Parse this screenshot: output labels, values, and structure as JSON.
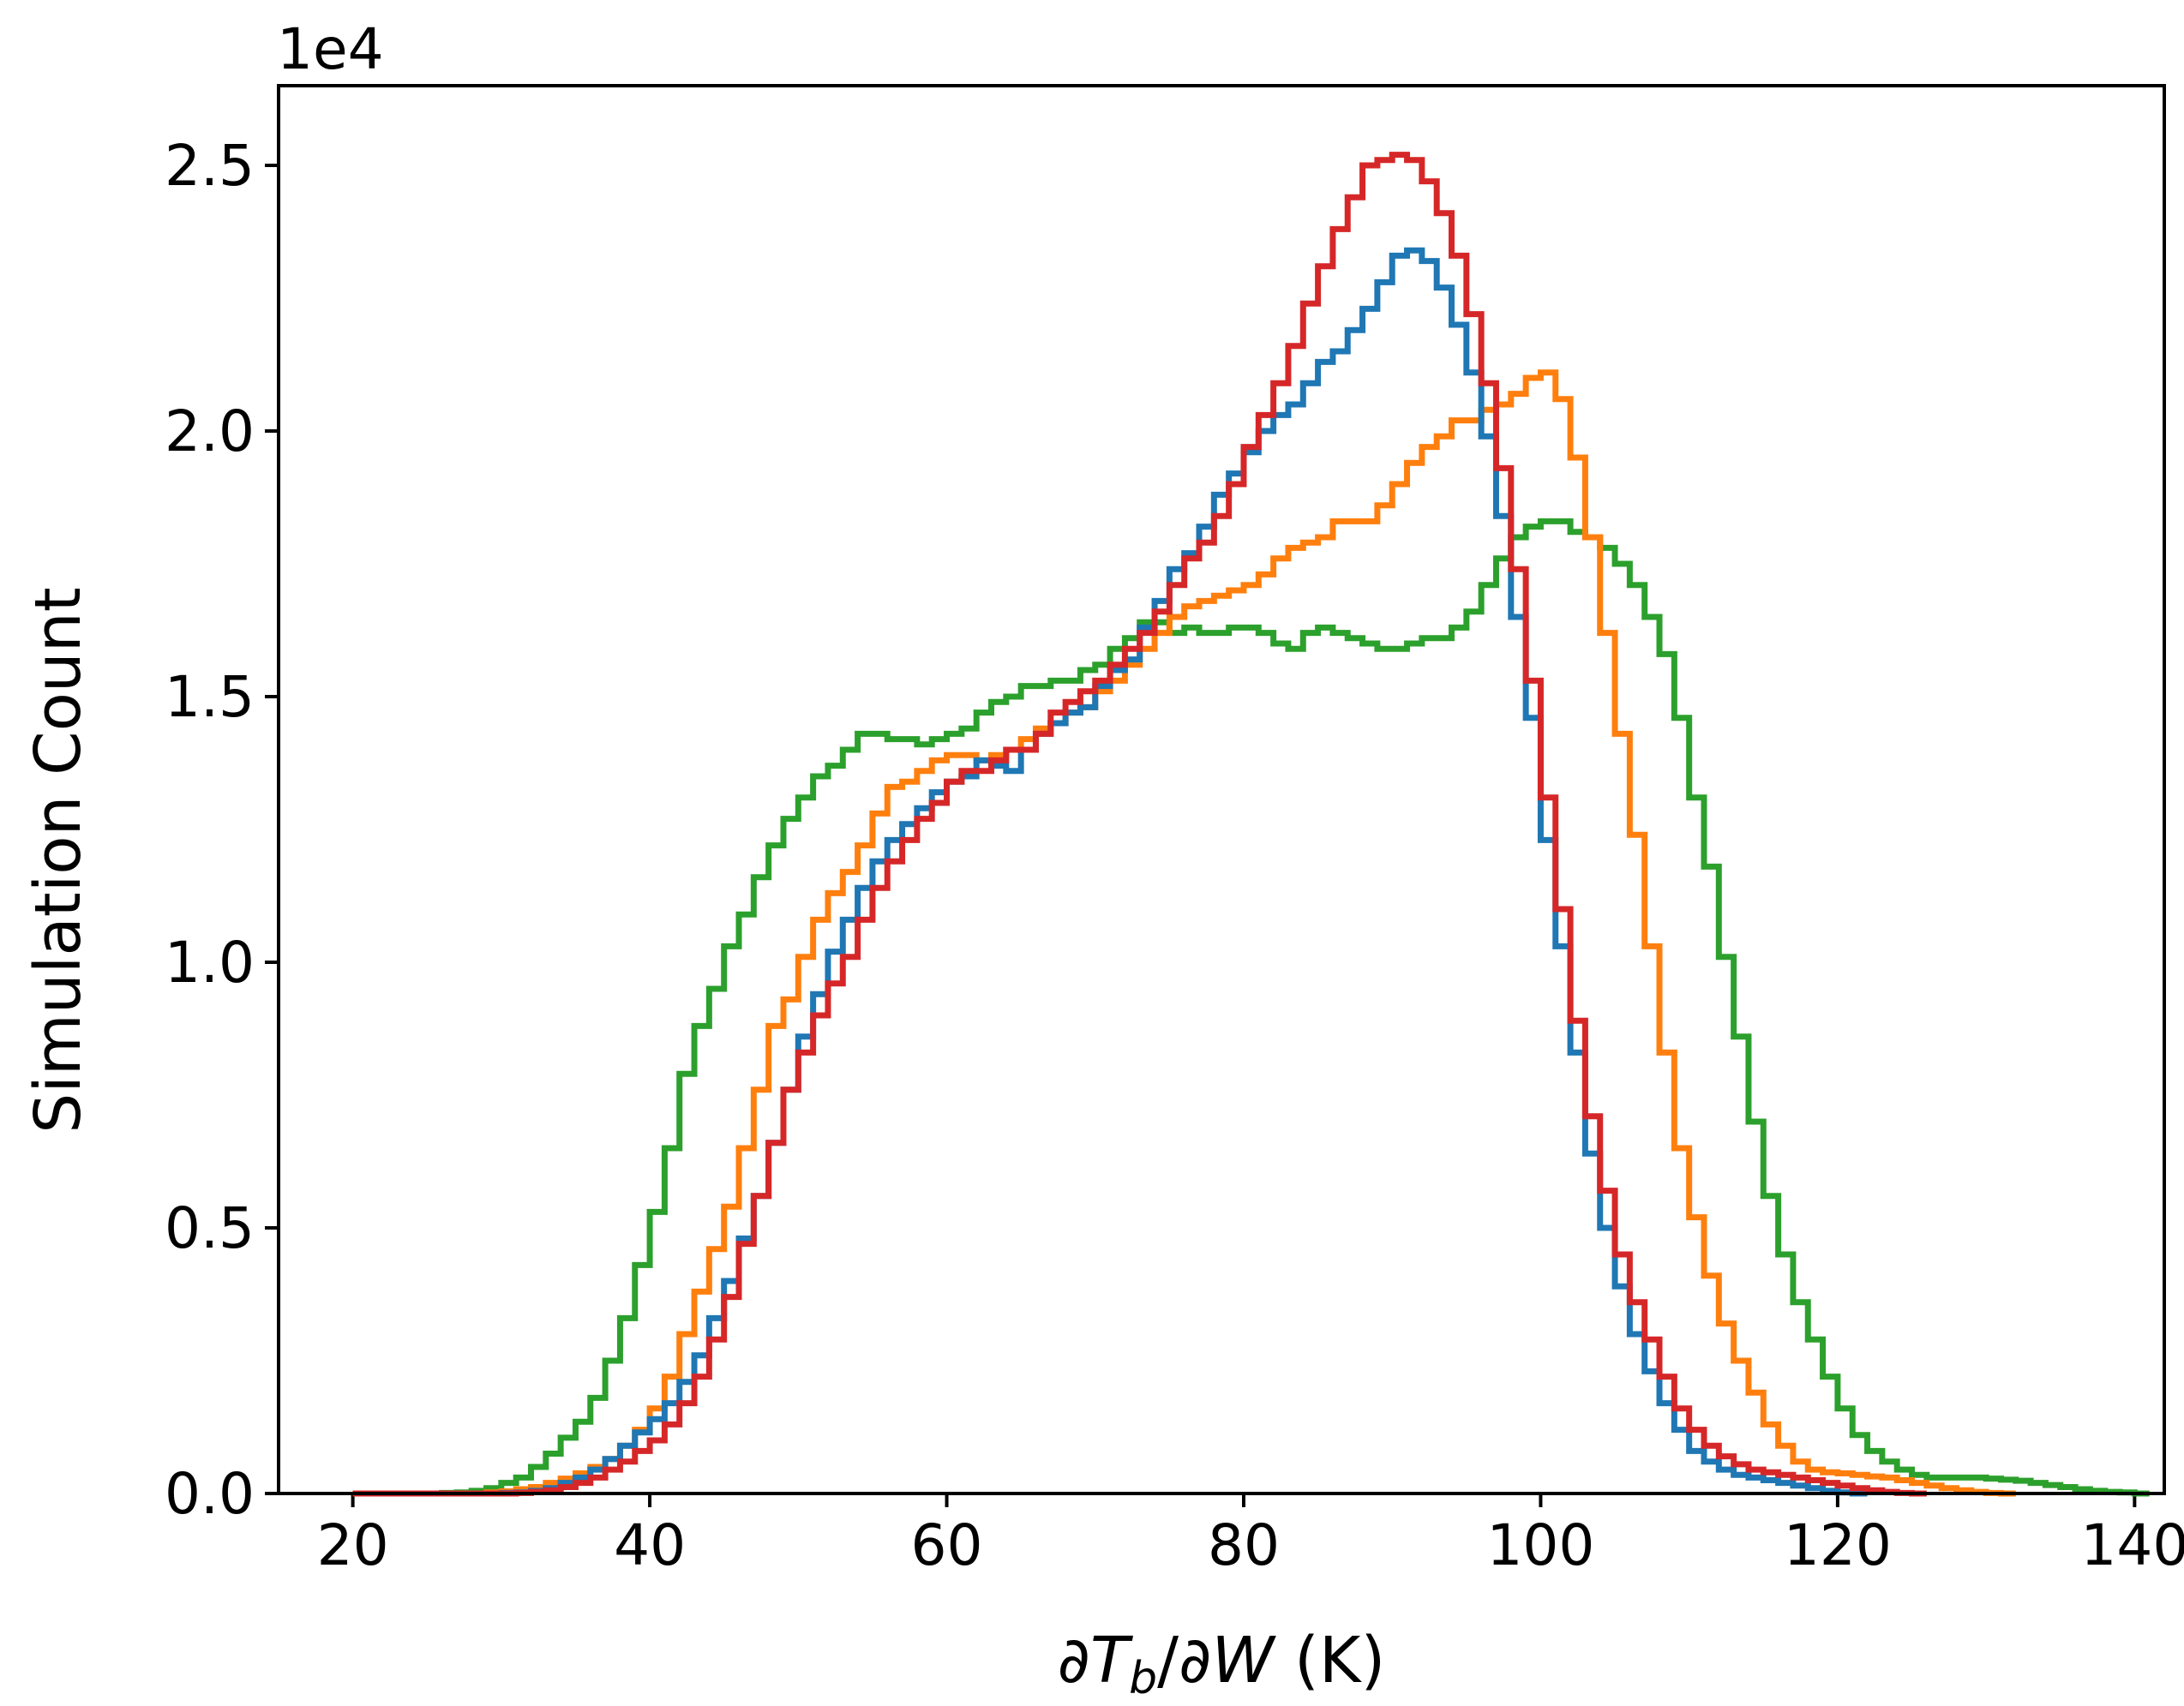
{
  "chart_data": {
    "type": "histogram",
    "title": "",
    "xlabel": "∂Tb/∂W (K)",
    "xlabel_parts": {
      "prefix": "∂",
      "var": "T",
      "sub": "b",
      "mid": "/∂",
      "var2": "W",
      "suffix": " (K)"
    },
    "ylabel": "Simulation Count",
    "y_offset_text": "1e4",
    "xlim": [
      15,
      142
    ],
    "ylim": [
      0,
      26500
    ],
    "x_ticks": [
      20,
      40,
      60,
      80,
      100,
      120,
      140
    ],
    "x_tick_labels": [
      "20",
      "40",
      "60",
      "80",
      "100",
      "120",
      "140"
    ],
    "y_ticks": [
      0,
      5000,
      10000,
      15000,
      20000,
      25000
    ],
    "y_tick_labels": [
      "0.0",
      "0.5",
      "1.0",
      "1.5",
      "2.0",
      "2.5"
    ],
    "grid": false,
    "legend": "none",
    "bin_width": 1,
    "bin_start": 20,
    "series": [
      {
        "name": "green",
        "color": "#2ca02c",
        "values": [
          0,
          0,
          0,
          0,
          0,
          0,
          10,
          20,
          50,
          100,
          200,
          300,
          500,
          750,
          1050,
          1350,
          1800,
          2500,
          3300,
          4300,
          5300,
          6500,
          7900,
          8800,
          9500,
          10300,
          10900,
          11600,
          12200,
          12700,
          13100,
          13500,
          13700,
          14000,
          14300,
          14300,
          14200,
          14200,
          14100,
          14200,
          14300,
          14400,
          14700,
          14900,
          15000,
          15200,
          15200,
          15300,
          15300,
          15500,
          15600,
          15900,
          16100,
          16400,
          16400,
          16200,
          16300,
          16200,
          16200,
          16300,
          16300,
          16200,
          16000,
          15900,
          16200,
          16300,
          16200,
          16100,
          16000,
          15900,
          15900,
          16000,
          16100,
          16100,
          16300,
          16600,
          17100,
          17600,
          18000,
          18200,
          18300,
          18300,
          18100,
          18000,
          17800,
          17500,
          17100,
          16500,
          15800,
          14600,
          13100,
          11800,
          10100,
          8600,
          7000,
          5600,
          4500,
          3600,
          2900,
          2200,
          1600,
          1100,
          800,
          600,
          450,
          350,
          300,
          300,
          300,
          300,
          280,
          260,
          240,
          200,
          160,
          120,
          80,
          50,
          30,
          20,
          0
        ]
      },
      {
        "name": "orange",
        "color": "#ff7f0e",
        "values": [
          0,
          0,
          0,
          0,
          0,
          0,
          0,
          0,
          0,
          20,
          40,
          80,
          120,
          200,
          280,
          380,
          500,
          650,
          900,
          1200,
          1600,
          2200,
          3000,
          3800,
          4600,
          5400,
          6500,
          7600,
          8800,
          9300,
          10100,
          10800,
          11300,
          11700,
          12200,
          12800,
          13300,
          13400,
          13600,
          13800,
          13900,
          13900,
          13800,
          13900,
          14000,
          14200,
          14400,
          14500,
          14700,
          14800,
          15100,
          15300,
          15600,
          15900,
          16200,
          16500,
          16700,
          16800,
          16900,
          17000,
          17100,
          17300,
          17600,
          17800,
          17900,
          18000,
          18300,
          18300,
          18300,
          18600,
          19000,
          19400,
          19700,
          19900,
          20200,
          20200,
          20400,
          20500,
          20700,
          21000,
          21100,
          20600,
          19500,
          18000,
          16200,
          14300,
          12400,
          10300,
          8300,
          6500,
          5200,
          4100,
          3200,
          2500,
          1900,
          1300,
          900,
          600,
          450,
          400,
          380,
          350,
          320,
          300,
          250,
          200,
          150,
          100,
          60,
          30,
          10,
          0
        ]
      },
      {
        "name": "blue",
        "color": "#1f77b4",
        "values": [
          0,
          0,
          0,
          0,
          0,
          0,
          0,
          0,
          0,
          0,
          10,
          20,
          50,
          100,
          200,
          300,
          450,
          650,
          900,
          1150,
          1400,
          1700,
          2100,
          2600,
          3300,
          4000,
          4800,
          5600,
          6600,
          7600,
          8600,
          9400,
          10200,
          10800,
          11400,
          11900,
          12300,
          12600,
          12900,
          13200,
          13400,
          13500,
          13800,
          13700,
          13600,
          14000,
          14300,
          14500,
          14700,
          14800,
          15200,
          15500,
          15700,
          16300,
          16800,
          17400,
          17700,
          18200,
          18800,
          19200,
          19600,
          20000,
          20300,
          20500,
          20900,
          21300,
          21500,
          21900,
          22300,
          22800,
          23300,
          23400,
          23200,
          22700,
          22000,
          21100,
          19900,
          18400,
          16500,
          14600,
          12300,
          10300,
          8300,
          6400,
          5000,
          3900,
          3000,
          2300,
          1700,
          1200,
          800,
          600,
          450,
          350,
          300,
          250,
          200,
          150,
          100,
          50,
          20,
          0
        ]
      },
      {
        "name": "red",
        "color": "#d62728",
        "values": [
          0,
          0,
          0,
          0,
          0,
          0,
          0,
          0,
          0,
          0,
          0,
          10,
          30,
          60,
          120,
          200,
          300,
          450,
          600,
          800,
          1000,
          1300,
          1700,
          2200,
          2900,
          3700,
          4700,
          5600,
          6600,
          7600,
          8300,
          9000,
          9600,
          10100,
          10800,
          11400,
          11900,
          12300,
          12700,
          13000,
          13400,
          13600,
          13600,
          13800,
          14000,
          14000,
          14300,
          14700,
          14900,
          15100,
          15300,
          15600,
          15900,
          16200,
          16600,
          17100,
          17600,
          17900,
          18400,
          19000,
          19700,
          20300,
          20900,
          21600,
          22400,
          23100,
          23800,
          24400,
          25000,
          25100,
          25200,
          25100,
          24700,
          24100,
          23300,
          22200,
          20900,
          19300,
          17400,
          15300,
          13100,
          11000,
          8900,
          7100,
          5700,
          4500,
          3600,
          2900,
          2200,
          1600,
          1200,
          900,
          700,
          550,
          450,
          400,
          350,
          300,
          250,
          200,
          150,
          100,
          60,
          30,
          10,
          0
        ]
      }
    ]
  }
}
